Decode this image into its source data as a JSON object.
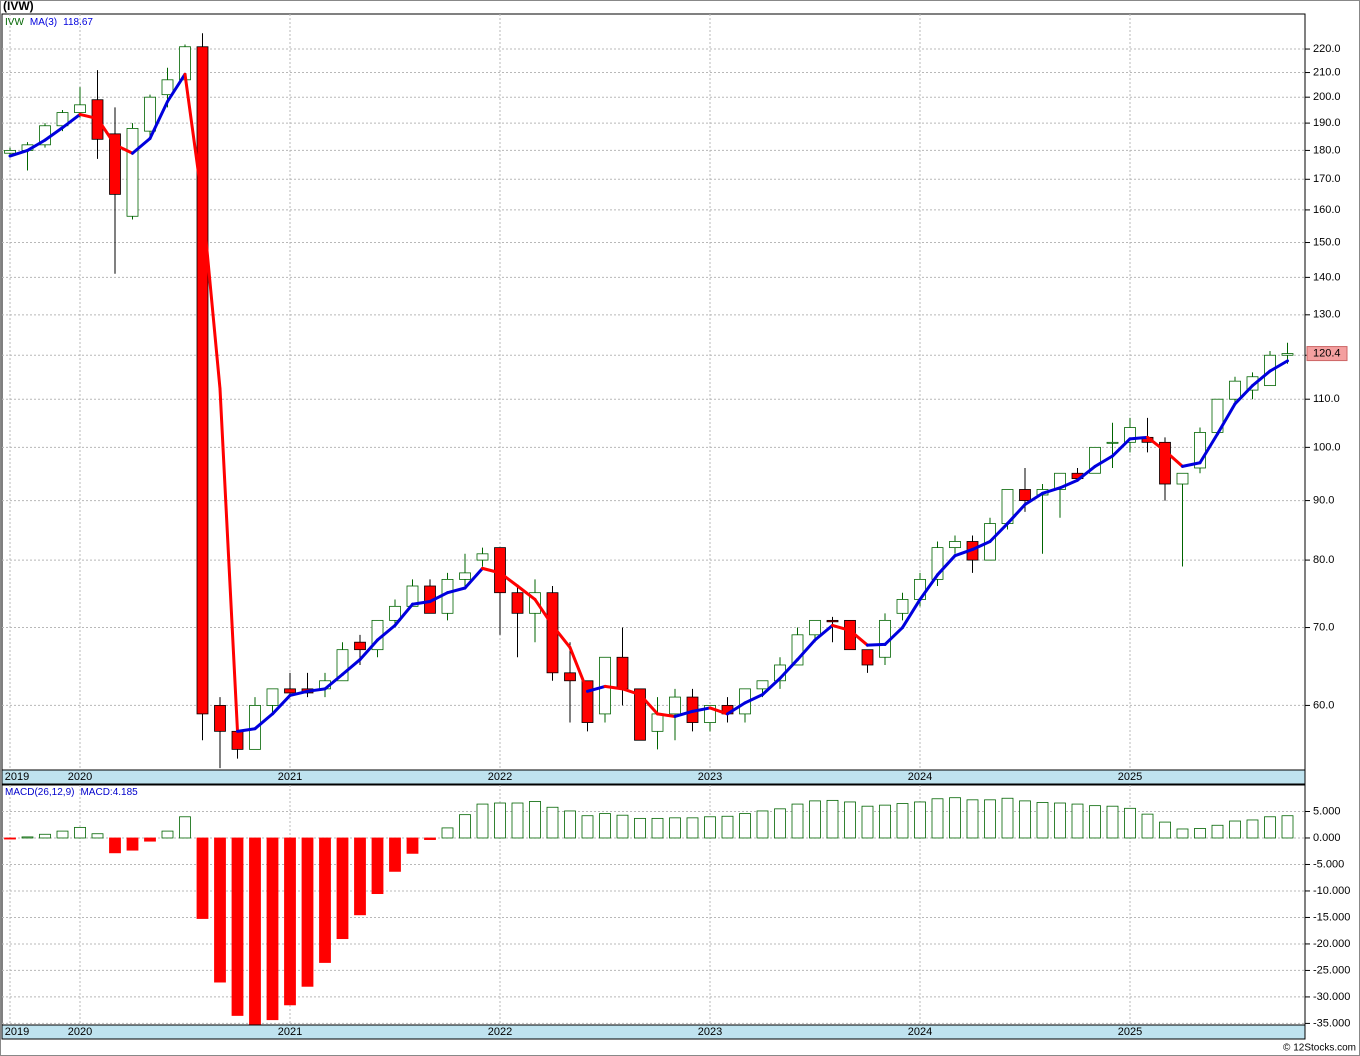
{
  "title": "(IVW)",
  "footer": "© 12Stocks.com",
  "chart_data": [
    {
      "type": "candlestick",
      "symbol": "IVW",
      "ma_name": "MA(3)",
      "ma_last": 118.67,
      "categories": [
        "2019",
        null,
        null,
        null,
        "2020",
        null,
        null,
        null,
        null,
        null,
        null,
        null,
        null,
        null,
        null,
        null,
        "2021",
        null,
        null,
        null,
        null,
        null,
        null,
        null,
        null,
        null,
        null,
        null,
        "2022",
        null,
        null,
        null,
        null,
        null,
        null,
        null,
        null,
        null,
        null,
        null,
        "2023",
        null,
        null,
        null,
        null,
        null,
        null,
        null,
        null,
        null,
        null,
        null,
        "2024",
        null,
        null,
        null,
        null,
        null,
        null,
        null,
        null,
        null,
        null,
        null,
        "2025",
        null,
        null,
        null,
        null,
        null,
        null,
        null,
        null,
        null
      ],
      "open": [
        179,
        180,
        182,
        189,
        194,
        199,
        186,
        158,
        187,
        201,
        207,
        221,
        60,
        57,
        55,
        60,
        62,
        62,
        62,
        63,
        68,
        67,
        71,
        73,
        76,
        72,
        77,
        80,
        82,
        75,
        72,
        75,
        64,
        63,
        59,
        66,
        62,
        57,
        59,
        61,
        58,
        60,
        59,
        62,
        63,
        65,
        69,
        71,
        71,
        67,
        66,
        72,
        74,
        77,
        82,
        83,
        80,
        86,
        92,
        91,
        92,
        95,
        95,
        101,
        101,
        102,
        101,
        93,
        96,
        103,
        110,
        112,
        113,
        120
      ],
      "high": [
        181,
        183,
        190,
        195,
        204,
        211,
        196,
        190,
        201,
        212,
        222,
        227,
        61,
        59,
        61,
        62,
        64,
        64,
        64,
        68,
        69,
        71,
        74,
        77,
        77,
        78,
        81,
        82,
        82,
        76,
        77,
        76,
        68,
        63,
        66,
        70,
        62,
        61,
        62,
        62,
        60,
        61,
        62,
        63,
        66,
        70,
        71,
        71.5,
        71,
        67,
        72,
        75,
        78,
        83,
        84,
        84,
        87,
        92,
        96,
        93,
        95,
        96,
        100,
        105,
        106,
        106,
        102,
        94,
        104,
        110,
        115,
        116,
        121,
        123
      ],
      "low": [
        178,
        173,
        181,
        187,
        192,
        177,
        141,
        157,
        184,
        196,
        206,
        56,
        53,
        54,
        55,
        59,
        61,
        61,
        61,
        63,
        65,
        66,
        70,
        73,
        72,
        71,
        76,
        79,
        69,
        66,
        68,
        63,
        58,
        57,
        58,
        60,
        56,
        55,
        56,
        57,
        57,
        58,
        58,
        61,
        62,
        65,
        68,
        68,
        67,
        64,
        65,
        71,
        73,
        76,
        81,
        78,
        80,
        85,
        88,
        81,
        87,
        94,
        95,
        96,
        99,
        99,
        90,
        79,
        95,
        103,
        109,
        110,
        113,
        118
      ],
      "close": [
        180,
        182,
        189,
        194,
        197,
        184,
        165,
        188,
        200,
        207,
        221,
        59,
        57,
        55,
        60,
        62,
        61.5,
        61.5,
        63,
        67,
        67,
        71,
        73,
        76,
        72,
        77,
        78,
        81,
        75,
        72,
        75,
        64,
        63,
        58,
        66,
        62,
        56,
        59,
        61,
        58,
        60,
        59,
        62,
        63,
        65,
        69,
        71,
        70.8,
        67,
        65,
        71,
        74,
        77,
        82,
        83,
        80,
        86,
        92,
        90,
        92,
        95,
        94,
        100,
        101,
        104,
        101,
        93,
        95,
        103,
        110,
        114,
        115,
        120,
        120.4
      ],
      "ma": [
        178,
        180,
        183.7,
        188.3,
        193.3,
        191.7,
        182,
        179,
        184.3,
        198.3,
        209.3,
        162.3,
        112.3,
        57,
        57.3,
        59,
        61.2,
        61.7,
        62,
        63.8,
        65.7,
        68.3,
        70.3,
        73.3,
        73.7,
        75,
        75.7,
        78.7,
        78,
        76,
        74,
        70.3,
        67.3,
        61.7,
        62.3,
        62,
        61.3,
        59,
        58.7,
        59.3,
        59.7,
        59,
        60.3,
        61.3,
        63.3,
        65.7,
        68.3,
        70.3,
        69.6,
        67.6,
        67.7,
        70,
        74,
        77.7,
        80.7,
        81.7,
        83,
        86,
        89.3,
        91.3,
        92.3,
        93.7,
        96.3,
        98.3,
        101.7,
        102,
        99.3,
        96.3,
        97,
        102.7,
        109,
        113,
        116.3,
        118.67
      ],
      "up_color": "#006400",
      "down_color": "#ff0000",
      "ma_up_color": "#0000dd",
      "ma_down_color": "#ff0000",
      "log_scale": true,
      "ylim": [
        52.8,
        235.8
      ],
      "grid": true,
      "yticks": [
        {
          "value": 60,
          "label": "60.0"
        },
        {
          "value": 70,
          "label": "70.0"
        },
        {
          "value": 80,
          "label": "80.0"
        },
        {
          "value": 90,
          "label": "90.0"
        },
        {
          "value": 100,
          "label": "100.0"
        },
        {
          "value": 110,
          "label": "110.0"
        },
        {
          "value": 120,
          "label": "120.0"
        },
        {
          "value": 130,
          "label": "130.0"
        },
        {
          "value": 140,
          "label": "140.0"
        },
        {
          "value": 150,
          "label": "150.0"
        },
        {
          "value": 160,
          "label": "160.0"
        },
        {
          "value": 170,
          "label": "170.0"
        },
        {
          "value": 180,
          "label": "180.0"
        },
        {
          "value": 190,
          "label": "190.0"
        },
        {
          "value": 200,
          "label": "200.0"
        },
        {
          "value": 210,
          "label": "210.0"
        },
        {
          "value": 220,
          "label": "220.0"
        }
      ]
    },
    {
      "type": "bar",
      "name": "MACD(26,12,9)",
      "label": "MACD:",
      "last": 4.185,
      "values": [
        -0.2,
        0.2,
        0.7,
        1.3,
        2.0,
        0.8,
        -2.8,
        -2.3,
        -0.6,
        1.3,
        4.0,
        -15.2,
        -27.2,
        -33.5,
        -35.2,
        -34.3,
        -31.5,
        -28,
        -23.5,
        -19,
        -14.5,
        -10.5,
        -6.3,
        -2.9,
        -0.3,
        1.9,
        4.4,
        6.4,
        6.6,
        6.6,
        6.9,
        5.8,
        5.1,
        4.2,
        4.6,
        4.3,
        3.7,
        3.7,
        3.8,
        3.8,
        4.0,
        4.1,
        4.6,
        5.1,
        5.5,
        6.4,
        7.0,
        7.1,
        6.8,
        6.0,
        6.2,
        6.5,
        6.8,
        7.4,
        7.6,
        7.2,
        7.2,
        7.5,
        7.0,
        6.7,
        6.6,
        6.4,
        6.1,
        6.0,
        5.6,
        4.5,
        3.0,
        1.7,
        1.8,
        2.4,
        3.2,
        3.4,
        4.0,
        4.2
      ],
      "pos_color": "#006400",
      "neg_color": "#ff0000",
      "ylim": [
        -35.3,
        10
      ],
      "grid": true,
      "yticks": [
        {
          "value": 5,
          "label": "5.000"
        },
        {
          "value": 0,
          "label": "0.000"
        },
        {
          "value": -5,
          "label": "-5.000"
        },
        {
          "value": -10,
          "label": "-10.000"
        },
        {
          "value": -15,
          "label": "-15.000"
        },
        {
          "value": -20,
          "label": "-20.000"
        },
        {
          "value": -25,
          "label": "-25.000"
        },
        {
          "value": -30,
          "label": "-30.000"
        },
        {
          "value": -35,
          "label": "-35.000"
        }
      ]
    }
  ]
}
